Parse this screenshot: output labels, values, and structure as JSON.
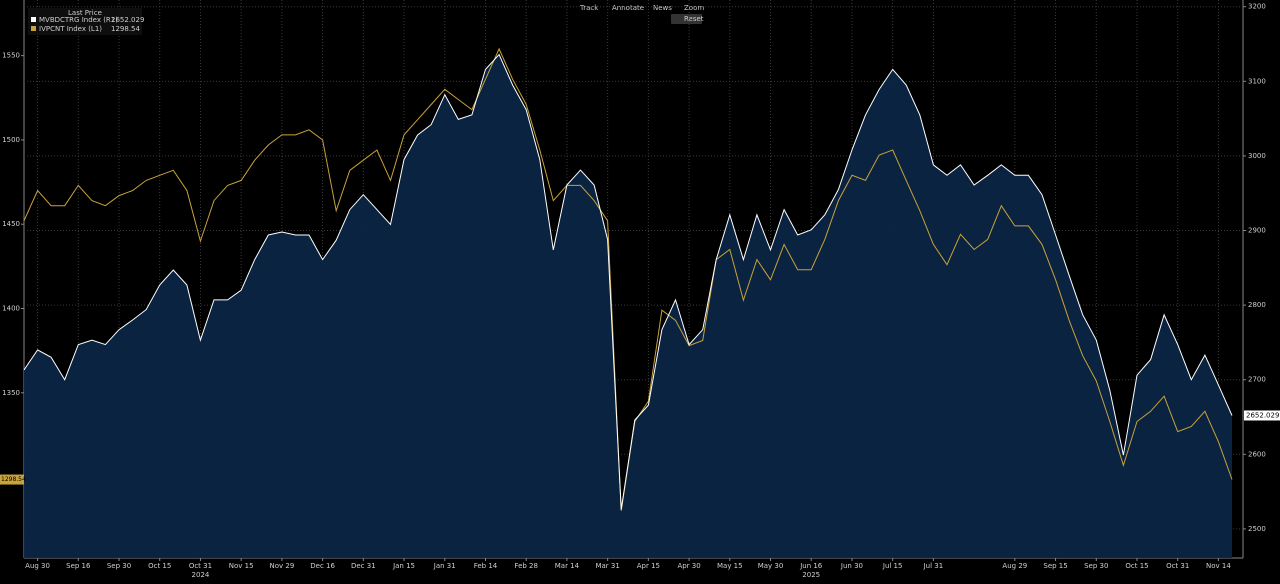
{
  "toolbar": {
    "items": [
      "Track",
      "Annotate",
      "News",
      "Zoom"
    ],
    "reset": "Reset"
  },
  "chart_data": {
    "type": "line",
    "legend_title": "Last Price",
    "categories": [
      null,
      "Aug 30",
      null,
      null,
      "Sep 16",
      null,
      null,
      "Sep 30",
      null,
      null,
      "Oct 15",
      null,
      null,
      "Oct 31",
      null,
      null,
      "Nov 15",
      null,
      null,
      "Nov 29",
      null,
      null,
      "Dec 16",
      null,
      null,
      "Dec 31",
      null,
      null,
      "Jan 15",
      null,
      null,
      "Jan 31",
      null,
      null,
      "Feb 14",
      null,
      null,
      "Feb 28",
      null,
      null,
      "Mar 14",
      null,
      null,
      "Mar 31",
      null,
      null,
      "Apr 15",
      null,
      null,
      "Apr 30",
      null,
      null,
      "May 15",
      null,
      null,
      "May 30",
      null,
      null,
      "Jun 16",
      null,
      null,
      "Jun 30",
      null,
      null,
      "Jul 15",
      null,
      null,
      "Jul 31",
      null,
      null,
      null,
      null,
      null,
      "Aug 29",
      null,
      null,
      "Sep 15",
      null,
      null,
      "Sep 30",
      null,
      null,
      "Oct 15",
      null,
      null,
      "Oct 31",
      null,
      null,
      "Nov 14",
      null
    ],
    "year_labels": [
      "2024",
      "2025"
    ],
    "series": [
      {
        "name": "MVBDCTRG Index (R1)",
        "color": "#ffffff",
        "fill": "#0b2545",
        "axis": "y2",
        "values": [
          2713,
          2740,
          2730,
          2700,
          2747,
          2753,
          2747,
          2767,
          2780,
          2794,
          2827,
          2847,
          2827,
          2753,
          2807,
          2807,
          2820,
          2861,
          2894,
          2898,
          2894,
          2894,
          2861,
          2887,
          2928,
          2948,
          2928,
          2908,
          2995,
          3028,
          3042,
          3082,
          3049,
          3055,
          3116,
          3136,
          3095,
          3062,
          2995,
          2874,
          2961,
          2981,
          2961,
          2888,
          2526,
          2646,
          2666,
          2767,
          2807,
          2747,
          2767,
          2861,
          2921,
          2861,
          2921,
          2874,
          2928,
          2894,
          2901,
          2921,
          2955,
          3008,
          3055,
          3089,
          3116,
          3095,
          3055,
          2988,
          2974,
          2988,
          2961,
          2974,
          2988,
          2974,
          2974,
          2948,
          2894,
          2840,
          2787,
          2753,
          2686,
          2599,
          2706,
          2727,
          2787,
          2747,
          2700,
          2733,
          2693,
          2652.029
        ]
      },
      {
        "name": "IVPCNT Index (L1)",
        "color": "#c9a23a",
        "axis": "y",
        "values": [
          1452,
          1470,
          1461,
          1461,
          1473,
          1464,
          1461,
          1467,
          1470,
          1476,
          1479,
          1482,
          1470,
          1440,
          1464,
          1473,
          1476,
          1488,
          1497,
          1503,
          1503,
          1506,
          1500,
          1458,
          1482,
          1488,
          1494,
          1476,
          1503,
          1512,
          1521,
          1530,
          1524,
          1518,
          1536,
          1554,
          1536,
          1521,
          1494,
          1464,
          1473,
          1473,
          1464,
          1452,
          1280,
          1333,
          1345,
          1399,
          1393,
          1378,
          1381,
          1429,
          1435,
          1405,
          1429,
          1417,
          1438,
          1423,
          1423,
          1441,
          1464,
          1479,
          1476,
          1491,
          1494,
          1476,
          1458,
          1438,
          1426,
          1444,
          1435,
          1441,
          1461,
          1449,
          1449,
          1438,
          1417,
          1393,
          1372,
          1357,
          1333,
          1307,
          1333,
          1339,
          1348,
          1327,
          1330,
          1339,
          1321,
          1298.54
        ]
      }
    ],
    "ylim": [
      1252,
      1583
    ],
    "yticks": [
      1350,
      1400,
      1450,
      1500,
      1550
    ],
    "y2lim": [
      2461,
      3209
    ],
    "y2ticks": [
      2500,
      2600,
      2700,
      2800,
      2900,
      3000,
      3100,
      3200
    ],
    "grid": true
  }
}
